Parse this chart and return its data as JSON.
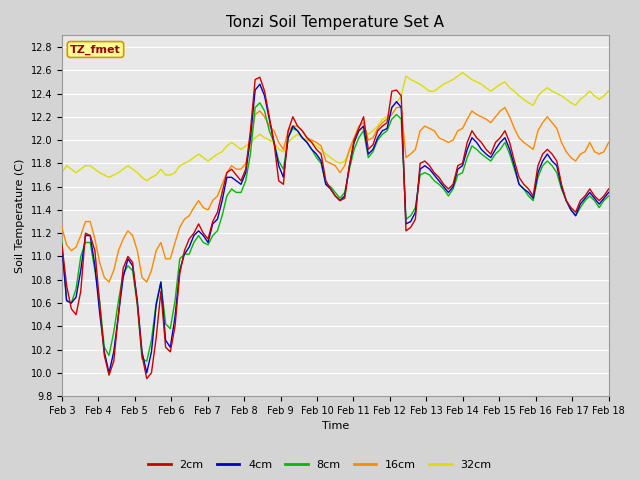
{
  "title": "Tonzi Soil Temperature Set A",
  "xlabel": "Time",
  "ylabel": "Soil Temperature (C)",
  "label_box_text": "TZ_fmet",
  "label_box_color": "#ffff99",
  "label_box_edge": "#cc9900",
  "label_text_color": "#990000",
  "ylim": [
    9.8,
    12.9
  ],
  "fig_bg_color": "#d4d4d4",
  "plot_bg_color": "#e8e8e8",
  "grid_color": "#ffffff",
  "line_colors": {
    "2cm": "#cc0000",
    "4cm": "#0000cc",
    "8cm": "#00bb00",
    "16cm": "#ff8800",
    "32cm": "#dddd00"
  },
  "x_tick_labels": [
    "Feb 3",
    "Feb 4",
    "Feb 5",
    "Feb 6",
    "Feb 7",
    "Feb 8",
    "Feb 9",
    "Feb 10",
    "Feb 11",
    "Feb 12",
    "Feb 13",
    "Feb 14",
    "Feb 15",
    "Feb 16",
    "Feb 17",
    "Feb 18"
  ],
  "depth_2cm": [
    11.1,
    10.75,
    10.55,
    10.5,
    10.7,
    11.2,
    11.18,
    11.05,
    10.6,
    10.15,
    9.98,
    10.1,
    10.5,
    10.9,
    11.0,
    10.95,
    10.6,
    10.15,
    9.95,
    10.0,
    10.3,
    10.7,
    10.22,
    10.18,
    10.4,
    10.85,
    11.05,
    11.15,
    11.2,
    11.28,
    11.2,
    11.15,
    11.3,
    11.38,
    11.55,
    11.72,
    11.75,
    11.7,
    11.65,
    11.75,
    12.08,
    12.52,
    12.54,
    12.42,
    12.2,
    11.98,
    11.65,
    11.62,
    12.08,
    12.2,
    12.12,
    12.08,
    12.02,
    11.98,
    11.92,
    11.88,
    11.65,
    11.58,
    11.52,
    11.48,
    11.5,
    11.78,
    12.0,
    12.1,
    12.2,
    11.92,
    11.96,
    12.08,
    12.12,
    12.15,
    12.42,
    12.43,
    12.38,
    11.22,
    11.25,
    11.32,
    11.8,
    11.82,
    11.78,
    11.72,
    11.68,
    11.62,
    11.58,
    11.62,
    11.78,
    11.8,
    11.98,
    12.08,
    12.02,
    11.98,
    11.92,
    11.88,
    11.98,
    12.02,
    12.08,
    11.98,
    11.82,
    11.68,
    11.62,
    11.58,
    11.52,
    11.78,
    11.88,
    11.92,
    11.88,
    11.82,
    11.62,
    11.48,
    11.42,
    11.38,
    11.48,
    11.52,
    11.58,
    11.52,
    11.48,
    11.52,
    11.58
  ],
  "depth_4cm": [
    11.08,
    10.62,
    10.6,
    10.65,
    10.88,
    11.18,
    11.18,
    10.92,
    10.52,
    10.18,
    10.0,
    10.18,
    10.5,
    10.82,
    10.98,
    10.92,
    10.62,
    10.18,
    10.0,
    10.18,
    10.58,
    10.78,
    10.28,
    10.22,
    10.48,
    10.88,
    11.02,
    11.08,
    11.18,
    11.22,
    11.18,
    11.12,
    11.28,
    11.32,
    11.48,
    11.68,
    11.68,
    11.65,
    11.62,
    11.72,
    12.02,
    12.43,
    12.48,
    12.38,
    12.18,
    11.98,
    11.78,
    11.68,
    12.02,
    12.12,
    12.08,
    12.02,
    11.98,
    11.92,
    11.88,
    11.82,
    11.62,
    11.58,
    11.52,
    11.48,
    11.52,
    11.78,
    11.98,
    12.08,
    12.12,
    11.88,
    11.92,
    12.02,
    12.08,
    12.1,
    12.28,
    12.33,
    12.28,
    11.28,
    11.3,
    11.38,
    11.75,
    11.78,
    11.75,
    11.7,
    11.65,
    11.6,
    11.55,
    11.6,
    11.75,
    11.78,
    11.92,
    12.02,
    11.98,
    11.92,
    11.88,
    11.85,
    11.92,
    11.98,
    12.02,
    11.92,
    11.78,
    11.62,
    11.58,
    11.55,
    11.5,
    11.72,
    11.82,
    11.88,
    11.82,
    11.78,
    11.6,
    11.48,
    11.4,
    11.35,
    11.45,
    11.5,
    11.55,
    11.5,
    11.45,
    11.5,
    11.55
  ],
  "depth_8cm": [
    11.12,
    10.62,
    10.6,
    10.72,
    11.0,
    11.12,
    11.12,
    10.88,
    10.62,
    10.22,
    10.15,
    10.35,
    10.62,
    10.85,
    10.92,
    10.88,
    10.58,
    10.12,
    10.1,
    10.28,
    10.6,
    10.78,
    10.42,
    10.38,
    10.62,
    10.98,
    11.02,
    11.02,
    11.12,
    11.18,
    11.12,
    11.1,
    11.18,
    11.22,
    11.35,
    11.52,
    11.58,
    11.55,
    11.55,
    11.65,
    11.88,
    12.28,
    12.32,
    12.25,
    12.08,
    11.98,
    11.82,
    11.75,
    12.02,
    12.1,
    12.08,
    12.02,
    11.98,
    11.92,
    11.85,
    11.8,
    11.62,
    11.6,
    11.55,
    11.5,
    11.55,
    11.75,
    11.92,
    12.02,
    12.08,
    11.85,
    11.9,
    12.0,
    12.05,
    12.08,
    12.18,
    12.22,
    12.18,
    11.32,
    11.35,
    11.42,
    11.7,
    11.72,
    11.7,
    11.65,
    11.62,
    11.58,
    11.52,
    11.58,
    11.7,
    11.72,
    11.85,
    11.95,
    11.92,
    11.88,
    11.85,
    11.82,
    11.88,
    11.92,
    11.98,
    11.88,
    11.75,
    11.62,
    11.58,
    11.52,
    11.48,
    11.68,
    11.78,
    11.82,
    11.78,
    11.72,
    11.58,
    11.48,
    11.4,
    11.35,
    11.42,
    11.48,
    11.52,
    11.48,
    11.42,
    11.48,
    11.52
  ],
  "depth_16cm": [
    11.25,
    11.1,
    11.05,
    11.08,
    11.18,
    11.3,
    11.3,
    11.15,
    10.95,
    10.82,
    10.78,
    10.88,
    11.05,
    11.15,
    11.22,
    11.18,
    11.05,
    10.82,
    10.78,
    10.88,
    11.05,
    11.12,
    10.98,
    10.98,
    11.12,
    11.25,
    11.32,
    11.35,
    11.42,
    11.48,
    11.42,
    11.4,
    11.48,
    11.52,
    11.62,
    11.72,
    11.78,
    11.75,
    11.75,
    11.8,
    11.98,
    12.22,
    12.25,
    12.2,
    12.12,
    12.08,
    11.98,
    11.92,
    12.08,
    12.12,
    12.12,
    12.08,
    12.02,
    12.0,
    11.98,
    11.95,
    11.82,
    11.8,
    11.78,
    11.72,
    11.78,
    11.92,
    12.02,
    12.12,
    12.15,
    12.0,
    12.02,
    12.1,
    12.15,
    12.18,
    12.22,
    12.28,
    12.28,
    11.85,
    11.88,
    11.92,
    12.08,
    12.12,
    12.1,
    12.08,
    12.02,
    12.0,
    11.98,
    12.0,
    12.08,
    12.1,
    12.18,
    12.25,
    12.22,
    12.2,
    12.18,
    12.15,
    12.2,
    12.25,
    12.28,
    12.2,
    12.1,
    12.02,
    11.98,
    11.95,
    11.92,
    12.08,
    12.15,
    12.2,
    12.15,
    12.1,
    11.98,
    11.9,
    11.85,
    11.82,
    11.88,
    11.9,
    11.98,
    11.9,
    11.88,
    11.9,
    11.98
  ],
  "depth_32cm": [
    11.72,
    11.78,
    11.75,
    11.72,
    11.75,
    11.78,
    11.78,
    11.75,
    11.72,
    11.7,
    11.68,
    11.7,
    11.72,
    11.75,
    11.78,
    11.75,
    11.72,
    11.68,
    11.65,
    11.68,
    11.7,
    11.75,
    11.7,
    11.7,
    11.72,
    11.78,
    11.8,
    11.82,
    11.85,
    11.88,
    11.85,
    11.82,
    11.85,
    11.88,
    11.9,
    11.95,
    11.98,
    11.95,
    11.92,
    11.95,
    11.98,
    12.02,
    12.05,
    12.02,
    12.0,
    11.98,
    11.92,
    11.9,
    11.98,
    12.02,
    12.05,
    12.02,
    12.0,
    11.98,
    11.95,
    11.92,
    11.88,
    11.85,
    11.82,
    11.8,
    11.82,
    11.9,
    11.98,
    12.08,
    12.1,
    12.05,
    12.08,
    12.12,
    12.18,
    12.2,
    12.28,
    12.32,
    12.38,
    12.55,
    12.52,
    12.5,
    12.48,
    12.45,
    12.42,
    12.42,
    12.45,
    12.48,
    12.5,
    12.52,
    12.55,
    12.58,
    12.55,
    12.52,
    12.5,
    12.48,
    12.45,
    12.42,
    12.45,
    12.48,
    12.5,
    12.45,
    12.42,
    12.38,
    12.35,
    12.32,
    12.3,
    12.38,
    12.42,
    12.45,
    12.42,
    12.4,
    12.38,
    12.35,
    12.32,
    12.3,
    12.35,
    12.38,
    12.42,
    12.38,
    12.35,
    12.38,
    12.42
  ]
}
